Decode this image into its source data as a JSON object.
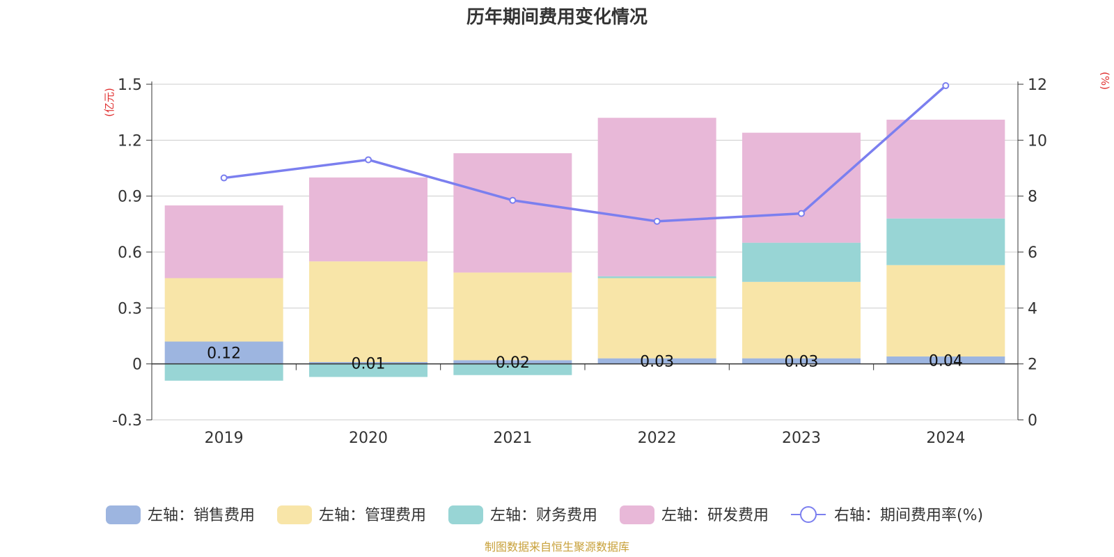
{
  "chart_data": {
    "type": "bar",
    "title": "历年期间费用变化情况",
    "categories": [
      "2019",
      "2020",
      "2021",
      "2022",
      "2023",
      "2024"
    ],
    "left_axis": {
      "unit_label": "(亿元)",
      "ticks": [
        "1.5",
        "1.2",
        "0.9",
        "0.6",
        "0.3",
        "0",
        "-0.3"
      ],
      "ylim": [
        -0.3,
        1.5
      ]
    },
    "right_axis": {
      "unit_label": "(%)",
      "ticks": [
        "12",
        "10",
        "8",
        "6",
        "4",
        "2",
        "0"
      ],
      "ylim": [
        0,
        12
      ]
    },
    "series": [
      {
        "name": "左轴：销售费用",
        "type": "bar",
        "color": "#9db5e0",
        "values": [
          0.12,
          0.01,
          0.02,
          0.03,
          0.03,
          0.04
        ],
        "labels": [
          "0.12",
          "0.01",
          "0.02",
          "0.03",
          "0.03",
          "0.04"
        ]
      },
      {
        "name": "左轴：管理费用",
        "type": "bar",
        "color": "#f8e5a8",
        "values": [
          0.34,
          0.54,
          0.47,
          0.43,
          0.41,
          0.49
        ]
      },
      {
        "name": "左轴：财务费用",
        "type": "bar",
        "color": "#98d5d5",
        "values": [
          -0.09,
          -0.07,
          -0.06,
          0.01,
          0.21,
          0.25
        ]
      },
      {
        "name": "左轴：研发费用",
        "type": "bar",
        "color": "#e8b8d8",
        "values": [
          0.39,
          0.45,
          0.64,
          0.85,
          0.59,
          0.53
        ]
      },
      {
        "name": "右轴：期间费用率(%)",
        "type": "line",
        "axis": "right",
        "color": "#7b7fef",
        "values": [
          8.65,
          9.3,
          7.85,
          7.1,
          7.38,
          11.95
        ]
      }
    ],
    "grid": true,
    "legend_position": "bottom"
  },
  "footer": {
    "source": "制图数据来自恒生聚源数据库"
  }
}
